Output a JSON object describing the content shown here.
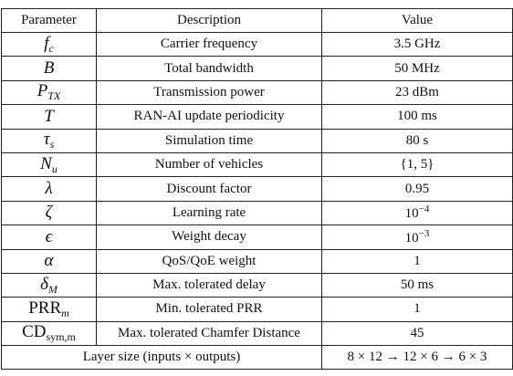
{
  "table": {
    "header": [
      "Parameter",
      "Description",
      "Value"
    ],
    "rows": [
      {
        "parameter": {
          "base": "f",
          "sub": "c"
        },
        "description": "Carrier frequency",
        "value": "3.5 GHz"
      },
      {
        "parameter": {
          "base": "B"
        },
        "description": "Total bandwidth",
        "value": "50 MHz"
      },
      {
        "parameter": {
          "base": "P",
          "sub": "TX"
        },
        "description": "Transmission power",
        "value": "23 dBm"
      },
      {
        "parameter": {
          "base": "T"
        },
        "description": "RAN-AI update periodicity",
        "value": "100 ms"
      },
      {
        "parameter": {
          "base": "τ",
          "sub": "s"
        },
        "description": "Simulation time",
        "value": "80 s"
      },
      {
        "parameter": {
          "base": "N",
          "sub": "u"
        },
        "description": "Number of vehicles",
        "value": "{1, 5}"
      },
      {
        "parameter": {
          "base": "λ"
        },
        "description": "Discount factor",
        "value": "0.95"
      },
      {
        "parameter": {
          "base": "ζ"
        },
        "description": "Learning rate",
        "value": {
          "base": "10",
          "sup": "−4"
        }
      },
      {
        "parameter": {
          "base": "ϵ"
        },
        "description": "Weight decay",
        "value": {
          "base": "10",
          "sup": "−3"
        }
      },
      {
        "parameter": {
          "base": "α"
        },
        "description": "QoS/QoE weight",
        "value": "1"
      },
      {
        "parameter": {
          "base": "δ",
          "sub": "M"
        },
        "description": "Max. tolerated delay",
        "value": "50 ms"
      },
      {
        "parameter": {
          "base": "PRR",
          "sub": "m"
        },
        "description": "Min. tolerated PRR",
        "value": "1"
      },
      {
        "parameter": {
          "base": "CD",
          "sub": "sym,m"
        },
        "description": "Max. tolerated Chamfer Distance",
        "value": "45"
      },
      {
        "description": "Layer size (inputs × outputs)",
        "value": "8 × 12 → 12 × 6 → 6 × 3"
      }
    ]
  }
}
